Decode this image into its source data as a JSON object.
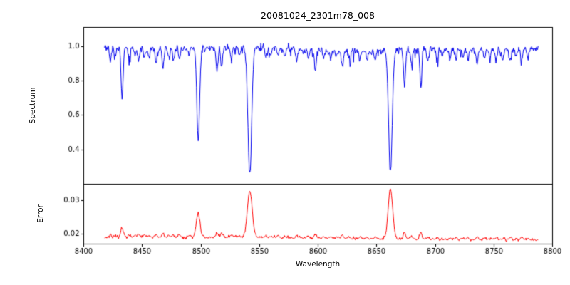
{
  "chart_data": {
    "type": "line",
    "title": "20081024_2301m78_008",
    "xlabel": "Wavelength",
    "grid": false,
    "legend": "none",
    "xlim": [
      8400,
      8800
    ],
    "xticks": [
      8400,
      8450,
      8500,
      8550,
      8600,
      8650,
      8700,
      8750,
      8800
    ],
    "xtick_labels": [
      "8400",
      "8450",
      "8500",
      "8550",
      "8600",
      "8650",
      "8700",
      "8750",
      "8800"
    ],
    "x_data_range": [
      8418,
      8788,
      0.5
    ],
    "panels": [
      {
        "name": "spectrum",
        "ylabel": "Spectrum",
        "ylim": [
          0.2,
          1.11
        ],
        "yticks": [
          0.4,
          0.6,
          0.8,
          1.0
        ],
        "ytick_labels": [
          "0.4",
          "0.6",
          "0.8",
          "1.0"
        ],
        "line_color": "#0000ee",
        "continuum": 0.982
      },
      {
        "name": "error",
        "ylabel": "Error",
        "ylim": [
          0.017,
          0.035
        ],
        "yticks": [
          0.02,
          0.03
        ],
        "ytick_labels": [
          "0.02",
          "0.03"
        ],
        "line_color": "#ff0000",
        "baseline": 0.0186
      }
    ],
    "absorption_lines": [
      {
        "center": 8433,
        "depth": 0.28,
        "sigma": 0.9,
        "err_bump": 0.003
      },
      {
        "center": 8498,
        "depth": 0.53,
        "sigma": 1.2,
        "err_bump": 0.007
      },
      {
        "center": 8542,
        "depth": 0.735,
        "sigma": 1.6,
        "err_bump": 0.0138
      },
      {
        "center": 8662,
        "depth": 0.72,
        "sigma": 1.5,
        "err_bump": 0.015
      }
    ],
    "weak_lines": [
      [
        8423,
        0.07
      ],
      [
        8427,
        0.05
      ],
      [
        8439,
        0.07
      ],
      [
        8444,
        0.05
      ],
      [
        8447,
        0.08
      ],
      [
        8452,
        0.06
      ],
      [
        8456,
        0.05
      ],
      [
        8462,
        0.08
      ],
      [
        8468,
        0.11
      ],
      [
        8473,
        0.05
      ],
      [
        8477,
        0.06
      ],
      [
        8482,
        0.07
      ],
      [
        8490,
        0.05
      ],
      [
        8514,
        0.13
      ],
      [
        8518,
        0.12
      ],
      [
        8526,
        0.06
      ],
      [
        8533,
        0.05
      ],
      [
        8556,
        0.06
      ],
      [
        8560,
        0.05
      ],
      [
        8566,
        0.05
      ],
      [
        8572,
        0.04
      ],
      [
        8582,
        0.06
      ],
      [
        8592,
        0.05
      ],
      [
        8598,
        0.11
      ],
      [
        8605,
        0.04
      ],
      [
        8611,
        0.05
      ],
      [
        8616,
        0.04
      ],
      [
        8621,
        0.09
      ],
      [
        8627,
        0.04
      ],
      [
        8636,
        0.05
      ],
      [
        8642,
        0.04
      ],
      [
        8649,
        0.05
      ],
      [
        8674,
        0.2
      ],
      [
        8680,
        0.08
      ],
      [
        8688,
        0.22
      ],
      [
        8694,
        0.06
      ],
      [
        8702,
        0.05
      ],
      [
        8706,
        0.04
      ],
      [
        8713,
        0.06
      ],
      [
        8718,
        0.05
      ],
      [
        8724,
        0.04
      ],
      [
        8728,
        0.05
      ],
      [
        8736,
        0.07
      ],
      [
        8742,
        0.05
      ],
      [
        8747,
        0.04
      ],
      [
        8752,
        0.06
      ],
      [
        8758,
        0.05
      ],
      [
        8764,
        0.07
      ],
      [
        8769,
        0.04
      ],
      [
        8774,
        0.06
      ],
      [
        8779,
        0.05
      ]
    ],
    "noise": {
      "seed": 12345,
      "spectrum_sigma": 0.01,
      "error_sigma": 0.00022
    },
    "axis_color": "#000000",
    "background_color": "#ffffff"
  }
}
